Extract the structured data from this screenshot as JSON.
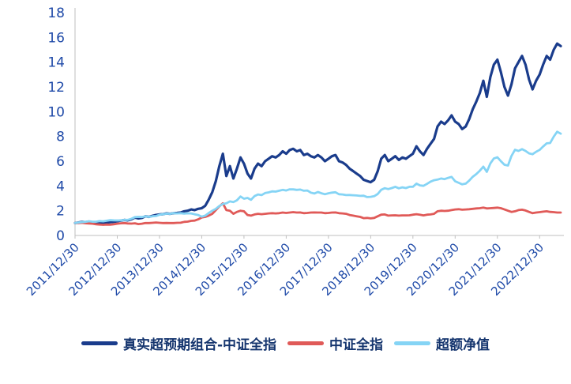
{
  "chart_data": {
    "type": "line",
    "title": "",
    "xlabel": "",
    "ylabel": "",
    "ylim": [
      0,
      18
    ],
    "y_ticks": [
      0,
      2,
      4,
      6,
      8,
      10,
      12,
      14,
      16,
      18
    ],
    "x_tick_labels": [
      "2011/12/30",
      "2012/12/30",
      "2013/12/30",
      "2014/12/30",
      "2015/12/30",
      "2016/12/30",
      "2017/12/30",
      "2018/12/30",
      "2019/12/30",
      "2020/12/30",
      "2021/12/30",
      "2022/12/30"
    ],
    "x_tick_indices": [
      0,
      12,
      24,
      36,
      48,
      60,
      72,
      84,
      96,
      108,
      120,
      132
    ],
    "n_points": 139,
    "grid": false,
    "legend_position": "bottom",
    "series": [
      {
        "name": "真实超预期组合-中证全指",
        "color": "#1A3C8C",
        "values": [
          1.0,
          1.05,
          1.1,
          1.08,
          1.12,
          1.05,
          1.0,
          1.02,
          0.98,
          1.05,
          1.08,
          1.1,
          1.15,
          1.2,
          1.25,
          1.22,
          1.3,
          1.45,
          1.38,
          1.42,
          1.55,
          1.5,
          1.58,
          1.65,
          1.7,
          1.72,
          1.78,
          1.75,
          1.8,
          1.82,
          1.85,
          1.95,
          2.0,
          2.1,
          2.05,
          2.15,
          2.2,
          2.4,
          2.9,
          3.5,
          4.4,
          5.6,
          6.6,
          4.8,
          5.6,
          4.6,
          5.4,
          6.3,
          5.8,
          5.0,
          4.6,
          5.4,
          5.8,
          5.6,
          6.0,
          6.2,
          6.4,
          6.3,
          6.5,
          6.8,
          6.6,
          6.9,
          7.0,
          6.8,
          6.9,
          6.5,
          6.6,
          6.4,
          6.3,
          6.5,
          6.3,
          6.0,
          6.2,
          6.4,
          6.5,
          6.0,
          5.9,
          5.7,
          5.4,
          5.2,
          5.0,
          4.8,
          4.5,
          4.4,
          4.3,
          4.5,
          5.2,
          6.2,
          6.5,
          6.0,
          6.2,
          6.4,
          6.1,
          6.3,
          6.2,
          6.4,
          6.6,
          7.2,
          6.8,
          6.5,
          7.0,
          7.4,
          7.8,
          8.8,
          9.2,
          9.0,
          9.3,
          9.7,
          9.2,
          9.0,
          8.6,
          8.8,
          9.4,
          10.2,
          10.8,
          11.5,
          12.5,
          11.2,
          12.8,
          13.8,
          14.2,
          13.2,
          12.0,
          11.3,
          12.2,
          13.5,
          14.0,
          14.5,
          13.8,
          12.6,
          11.8,
          12.5,
          13.0,
          13.8,
          14.5,
          14.2,
          15.0,
          15.5,
          15.3
        ]
      },
      {
        "name": "中证全指",
        "color": "#E05A58",
        "values": [
          1.0,
          1.0,
          1.02,
          0.98,
          0.97,
          0.95,
          0.9,
          0.88,
          0.86,
          0.88,
          0.87,
          0.9,
          0.95,
          0.98,
          1.0,
          0.97,
          0.96,
          0.98,
          0.92,
          0.95,
          1.0,
          1.0,
          1.02,
          1.05,
          1.02,
          1.0,
          1.01,
          1.0,
          1.0,
          1.02,
          1.03,
          1.1,
          1.12,
          1.18,
          1.2,
          1.3,
          1.45,
          1.5,
          1.6,
          1.75,
          2.05,
          2.35,
          2.6,
          2.05,
          2.0,
          1.75,
          1.9,
          2.0,
          1.95,
          1.65,
          1.6,
          1.7,
          1.75,
          1.72,
          1.75,
          1.78,
          1.8,
          1.78,
          1.8,
          1.85,
          1.82,
          1.85,
          1.88,
          1.85,
          1.86,
          1.8,
          1.82,
          1.85,
          1.86,
          1.85,
          1.85,
          1.8,
          1.82,
          1.85,
          1.86,
          1.8,
          1.78,
          1.75,
          1.65,
          1.6,
          1.55,
          1.5,
          1.4,
          1.42,
          1.38,
          1.42,
          1.55,
          1.68,
          1.7,
          1.6,
          1.62,
          1.63,
          1.6,
          1.62,
          1.62,
          1.63,
          1.68,
          1.72,
          1.68,
          1.62,
          1.68,
          1.7,
          1.75,
          1.95,
          2.0,
          1.98,
          2.0,
          2.05,
          2.1,
          2.12,
          2.08,
          2.1,
          2.12,
          2.15,
          2.18,
          2.2,
          2.25,
          2.18,
          2.2,
          2.22,
          2.25,
          2.2,
          2.1,
          2.0,
          1.9,
          1.95,
          2.05,
          2.08,
          2.02,
          1.9,
          1.8,
          1.85,
          1.88,
          1.92,
          1.95,
          1.9,
          1.88,
          1.85,
          1.85
        ]
      },
      {
        "name": "超额净值",
        "color": "#85D4F5",
        "values": [
          1.0,
          1.05,
          1.08,
          1.1,
          1.15,
          1.11,
          1.11,
          1.16,
          1.14,
          1.19,
          1.24,
          1.22,
          1.21,
          1.22,
          1.25,
          1.26,
          1.35,
          1.48,
          1.5,
          1.49,
          1.55,
          1.5,
          1.55,
          1.57,
          1.67,
          1.72,
          1.76,
          1.75,
          1.8,
          1.78,
          1.8,
          1.77,
          1.79,
          1.78,
          1.71,
          1.65,
          1.52,
          1.6,
          1.81,
          2.0,
          2.15,
          2.38,
          2.54,
          2.6,
          2.75,
          2.7,
          2.84,
          3.15,
          2.97,
          3.03,
          2.88,
          3.18,
          3.31,
          3.26,
          3.43,
          3.48,
          3.56,
          3.54,
          3.61,
          3.68,
          3.63,
          3.73,
          3.72,
          3.68,
          3.71,
          3.61,
          3.63,
          3.46,
          3.39,
          3.51,
          3.41,
          3.33,
          3.41,
          3.46,
          3.49,
          3.33,
          3.31,
          3.26,
          3.27,
          3.25,
          3.23,
          3.2,
          3.21,
          3.1,
          3.12,
          3.17,
          3.35,
          3.69,
          3.82,
          3.75,
          3.83,
          3.93,
          3.81,
          3.89,
          3.83,
          3.93,
          3.93,
          4.19,
          4.05,
          4.01,
          4.17,
          4.35,
          4.46,
          4.51,
          4.6,
          4.55,
          4.65,
          4.73,
          4.38,
          4.25,
          4.13,
          4.19,
          4.43,
          4.74,
          4.95,
          5.23,
          5.56,
          5.14,
          5.82,
          6.22,
          6.31,
          6.0,
          5.71,
          5.65,
          6.42,
          6.92,
          6.83,
          6.97,
          6.83,
          6.63,
          6.56,
          6.76,
          6.91,
          7.19,
          7.44,
          7.47,
          7.98,
          8.38,
          8.22
        ]
      }
    ]
  },
  "colors": {
    "axis_text": "#1F4AA8",
    "axis_line": "#BFBFBF",
    "legend_text": "#15356E",
    "background": "#FFFFFF"
  }
}
